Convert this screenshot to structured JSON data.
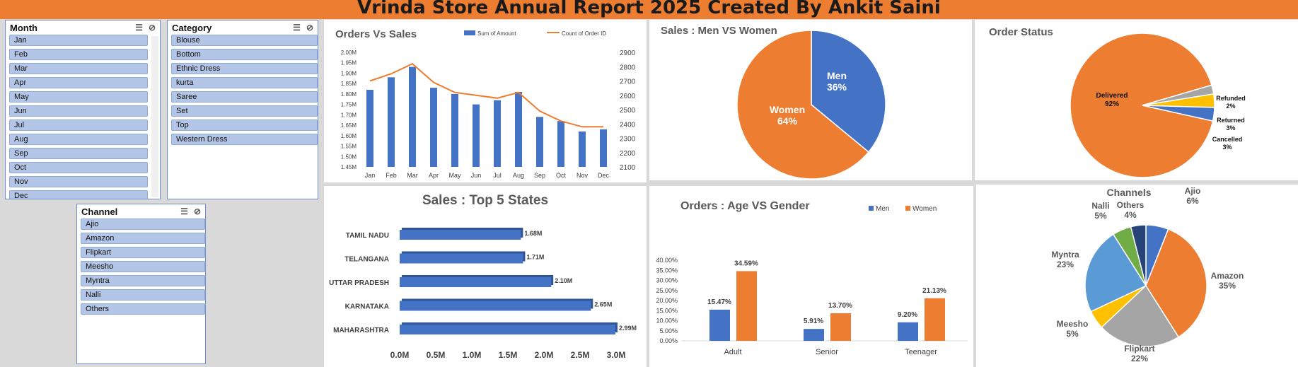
{
  "header": {
    "title": "Vrinda Store Annual Report 2025 Created By Ankit Saini"
  },
  "slicers": {
    "month": {
      "title": "Month",
      "items": [
        "Jan",
        "Feb",
        "Mar",
        "Apr",
        "May",
        "Jun",
        "Jul",
        "Aug",
        "Sep",
        "Oct",
        "Nov",
        "Dec"
      ]
    },
    "category": {
      "title": "Category",
      "items": [
        "Blouse",
        "Bottom",
        "Ethnic Dress",
        "kurta",
        "Saree",
        "Set",
        "Top",
        "Western Dress"
      ]
    },
    "channel": {
      "title": "Channel",
      "items": [
        "Ajio",
        "Amazon",
        "Flipkart",
        "Meesho",
        "Myntra",
        "Nalli",
        "Others"
      ]
    }
  },
  "colors": {
    "blue": "#4472c4",
    "orange": "#ed7d31",
    "gray": "#a5a5a5",
    "yellow": "#ffc000",
    "lightblue": "#5b9bd5",
    "green": "#70ad47",
    "navy": "#264478"
  },
  "chart_data": [
    {
      "id": "orders-vs-sales",
      "type": "bar",
      "title": "Orders Vs Sales",
      "categories": [
        "Jan",
        "Feb",
        "Mar",
        "Apr",
        "May",
        "Jun",
        "Jul",
        "Aug",
        "Sep",
        "Oct",
        "Nov",
        "Dec"
      ],
      "series": [
        {
          "name": "Sum of Amount",
          "type": "bar",
          "axis": "left",
          "values": [
            1820000,
            1880000,
            1930000,
            1830000,
            1800000,
            1750000,
            1770000,
            1810000,
            1690000,
            1670000,
            1620000,
            1630000
          ]
        },
        {
          "name": "Count of Order ID",
          "type": "line",
          "axis": "right",
          "values": [
            2700,
            2750,
            2820,
            2690,
            2620,
            2600,
            2580,
            2620,
            2490,
            2420,
            2380,
            2380
          ]
        }
      ],
      "left_ticks": [
        "1.45M",
        "1.50M",
        "1.55M",
        "1.60M",
        "1.65M",
        "1.70M",
        "1.75M",
        "1.80M",
        "1.85M",
        "1.90M",
        "1.95M",
        "2.00M"
      ],
      "right_ticks": [
        "2100",
        "2200",
        "2300",
        "2400",
        "2500",
        "2600",
        "2700",
        "2800",
        "2900"
      ],
      "ylim_left": [
        1450000,
        2000000
      ],
      "ylim_right": [
        2100,
        2900
      ],
      "legend": "top"
    },
    {
      "id": "sales-men-women",
      "type": "pie",
      "title": "Sales : Men VS Women",
      "slices": [
        {
          "label": "Men",
          "pct": "36%",
          "value": 36
        },
        {
          "label": "Women",
          "pct": "64%",
          "value": 64
        }
      ]
    },
    {
      "id": "order-status",
      "type": "pie",
      "title": "Order Status",
      "slices": [
        {
          "label": "Delivered",
          "pct": "92%",
          "value": 92
        },
        {
          "label": "Refunded",
          "pct": "2%",
          "value": 2
        },
        {
          "label": "Returned",
          "pct": "3%",
          "value": 3
        },
        {
          "label": "Cancelled",
          "pct": "3%",
          "value": 3
        }
      ]
    },
    {
      "id": "top-5-states",
      "type": "bar",
      "orientation": "horizontal",
      "title": "Sales : Top 5 States",
      "categories": [
        "TAMIL NADU",
        "TELANGANA",
        "UTTAR PRADESH",
        "KARNATAKA",
        "MAHARASHTRA"
      ],
      "values": [
        1.68,
        1.71,
        2.1,
        2.65,
        2.99
      ],
      "labels": [
        "1.68M",
        "1.71M",
        "2.10M",
        "2.65M",
        "2.99M"
      ],
      "xticks": [
        "0.0M",
        "0.5M",
        "1.0M",
        "1.5M",
        "2.0M",
        "2.5M",
        "3.0M"
      ],
      "xlim": [
        0,
        3.0
      ]
    },
    {
      "id": "age-vs-gender",
      "type": "bar",
      "title": "Orders : Age VS Gender",
      "categories": [
        "Adult",
        "Senior",
        "Teenager"
      ],
      "series": [
        {
          "name": "Men",
          "values": [
            15.47,
            5.91,
            9.2
          ],
          "labels": [
            "15.47%",
            "5.91%",
            "9.20%"
          ]
        },
        {
          "name": "Women",
          "values": [
            34.59,
            13.7,
            21.13
          ],
          "labels": [
            "34.59%",
            "13.70%",
            "21.13%"
          ]
        }
      ],
      "yticks": [
        "0.00%",
        "5.00%",
        "10.00%",
        "15.00%",
        "20.00%",
        "25.00%",
        "30.00%",
        "35.00%",
        "40.00%"
      ],
      "ylim": [
        0,
        40
      ],
      "legend": "top-right"
    },
    {
      "id": "channels",
      "type": "pie",
      "title": "Channels",
      "slices": [
        {
          "label": "Ajio",
          "pct": "6%",
          "value": 6
        },
        {
          "label": "Amazon",
          "pct": "35%",
          "value": 35
        },
        {
          "label": "Flipkart",
          "pct": "22%",
          "value": 22
        },
        {
          "label": "Meesho",
          "pct": "5%",
          "value": 5
        },
        {
          "label": "Myntra",
          "pct": "23%",
          "value": 23
        },
        {
          "label": "Nalli",
          "pct": "5%",
          "value": 5
        },
        {
          "label": "Others",
          "pct": "4%",
          "value": 4
        }
      ]
    }
  ]
}
